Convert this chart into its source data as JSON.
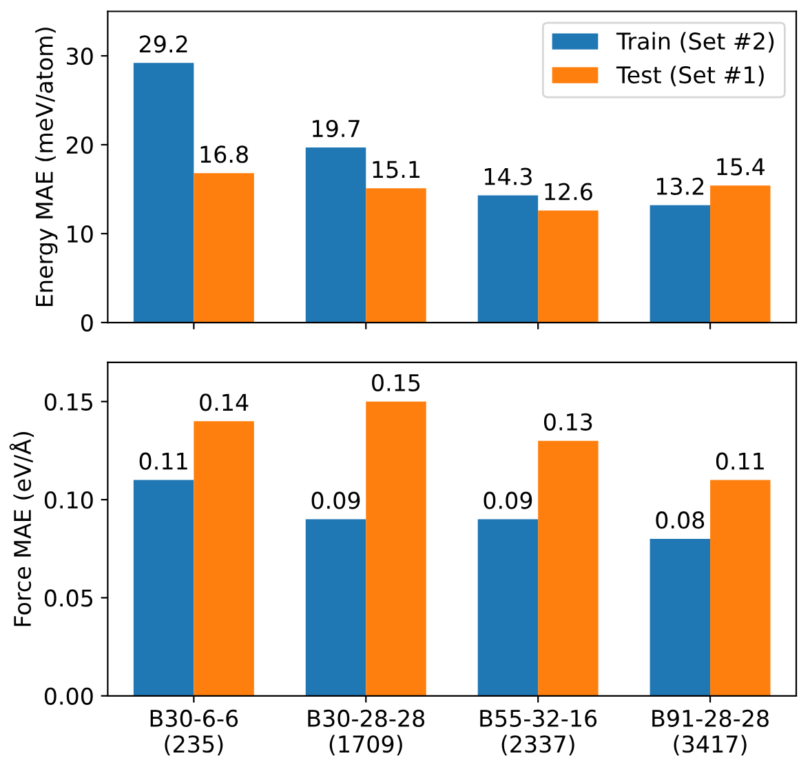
{
  "chart_data": [
    {
      "type": "bar",
      "ylabel": "Energy MAE (meV/atom)",
      "series": [
        {
          "name": "Train (Set #2)",
          "color": "#1f77b4",
          "values": [
            29.2,
            19.7,
            14.3,
            13.2
          ]
        },
        {
          "name": "Test (Set #1)",
          "color": "#ff7f0e",
          "values": [
            16.8,
            15.1,
            12.6,
            15.4
          ]
        }
      ],
      "ylim": [
        0,
        35
      ],
      "yticks": [
        0,
        10,
        20,
        30
      ],
      "data_labels": true,
      "legend": "top right",
      "tick_labels": "y",
      "grid": false
    },
    {
      "type": "bar",
      "ylabel": "Force MAE (eV/Å)",
      "categories": [
        "B30-6-6\n(235)",
        "B30-28-28\n(1709)",
        "B55-32-16\n(2337)",
        "B91-28-28\n(3417)"
      ],
      "series": [
        {
          "color": "#1f77b4",
          "values": [
            0.11,
            0.09,
            0.09,
            0.08
          ]
        },
        {
          "color": "#ff7f0e",
          "values": [
            0.14,
            0.15,
            0.13,
            0.11
          ]
        }
      ],
      "ylim": [
        0,
        0.17
      ],
      "yticks": [
        {
          "value": 0,
          "label": "0.00"
        },
        {
          "value": 0.05,
          "label": "0.05"
        },
        {
          "value": 0.1,
          "label": "0.10"
        },
        {
          "value": 0.15,
          "label": "0.15"
        }
      ],
      "data_labels": true,
      "legend": false,
      "grid": false
    }
  ]
}
